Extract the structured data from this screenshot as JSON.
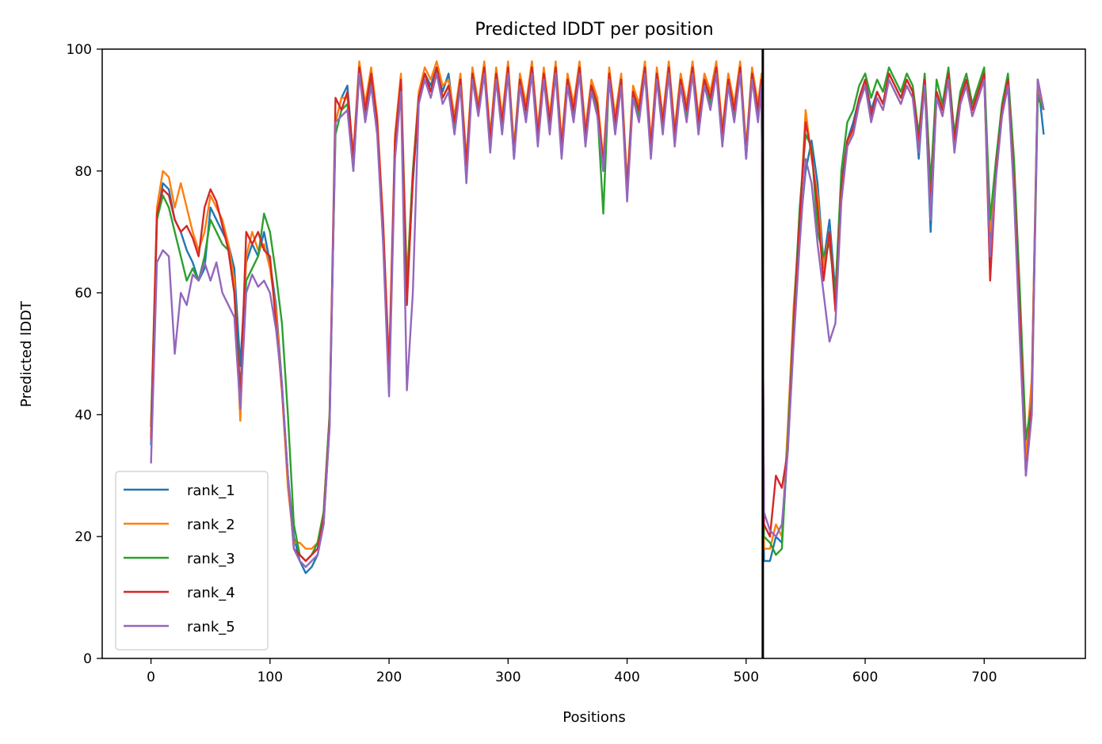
{
  "chart_data": {
    "type": "line",
    "title": "Predicted lDDT per position",
    "xlabel": "Positions",
    "ylabel": "Predicted lDDT",
    "xlim": [
      -41,
      785
    ],
    "ylim": [
      0,
      100
    ],
    "xticks": [
      0,
      100,
      200,
      300,
      400,
      500,
      600,
      700
    ],
    "yticks": [
      0,
      20,
      40,
      60,
      80,
      100
    ],
    "grid": false,
    "legend_position": "lower-left",
    "vline_x": 514,
    "colors": {
      "rank_1": "#1f77b4",
      "rank_2": "#ff7f0e",
      "rank_3": "#2ca02c",
      "rank_4": "#d62728",
      "rank_5": "#9467bd",
      "vline": "#000000"
    },
    "x": [
      0,
      5,
      10,
      15,
      20,
      25,
      30,
      35,
      40,
      45,
      50,
      55,
      60,
      65,
      70,
      75,
      80,
      85,
      90,
      95,
      100,
      105,
      110,
      115,
      120,
      125,
      130,
      135,
      140,
      145,
      150,
      155,
      160,
      165,
      170,
      175,
      180,
      185,
      190,
      195,
      200,
      205,
      210,
      215,
      220,
      225,
      230,
      235,
      240,
      245,
      250,
      255,
      260,
      265,
      270,
      275,
      280,
      285,
      290,
      295,
      300,
      305,
      310,
      315,
      320,
      325,
      330,
      335,
      340,
      345,
      350,
      355,
      360,
      365,
      370,
      375,
      380,
      385,
      390,
      395,
      400,
      405,
      410,
      415,
      420,
      425,
      430,
      435,
      440,
      445,
      450,
      455,
      460,
      465,
      470,
      475,
      480,
      485,
      490,
      495,
      500,
      505,
      510,
      513,
      515,
      520,
      525,
      530,
      535,
      540,
      545,
      550,
      555,
      560,
      565,
      570,
      575,
      580,
      585,
      590,
      595,
      600,
      605,
      610,
      615,
      620,
      625,
      630,
      635,
      640,
      645,
      650,
      655,
      660,
      665,
      670,
      675,
      680,
      685,
      690,
      695,
      700,
      705,
      710,
      715,
      720,
      725,
      730,
      735,
      740,
      745,
      750
    ],
    "series": [
      {
        "name": "rank_1",
        "values": [
          35,
          72,
          78,
          77,
          72,
          70,
          67,
          65,
          62,
          64,
          74,
          72,
          70,
          68,
          64,
          48,
          65,
          68,
          66,
          70,
          65,
          58,
          45,
          30,
          20,
          16,
          14,
          15,
          17,
          22,
          38,
          88,
          92,
          94,
          82,
          97,
          90,
          96,
          88,
          70,
          45,
          85,
          95,
          60,
          78,
          92,
          96,
          94,
          97,
          93,
          96,
          88,
          95,
          80,
          96,
          90,
          97,
          85,
          96,
          88,
          97,
          82,
          95,
          90,
          98,
          86,
          96,
          88,
          97,
          84,
          95,
          90,
          97,
          86,
          94,
          91,
          80,
          96,
          88,
          95,
          76,
          93,
          90,
          97,
          84,
          96,
          88,
          97,
          86,
          95,
          90,
          97,
          88,
          95,
          92,
          97,
          86,
          95,
          90,
          97,
          82,
          96,
          90,
          95,
          16,
          16,
          20,
          19,
          35,
          55,
          70,
          80,
          85,
          78,
          65,
          72,
          60,
          78,
          85,
          88,
          92,
          95,
          90,
          93,
          91,
          96,
          94,
          92,
          95,
          93,
          82,
          95,
          70,
          93,
          90,
          96,
          85,
          92,
          95,
          90,
          93,
          96,
          68,
          80,
          90,
          95,
          78,
          55,
          32,
          45,
          95,
          86
        ]
      },
      {
        "name": "rank_2",
        "values": [
          38,
          74,
          80,
          79,
          74,
          78,
          74,
          70,
          67,
          70,
          76,
          74,
          72,
          68,
          62,
          39,
          66,
          70,
          67,
          68,
          64,
          57,
          44,
          28,
          19,
          19,
          18,
          18,
          19,
          24,
          40,
          88,
          92,
          92,
          83,
          98,
          91,
          97,
          89,
          72,
          48,
          86,
          96,
          62,
          80,
          93,
          97,
          95,
          98,
          94,
          95,
          89,
          96,
          82,
          97,
          91,
          98,
          86,
          97,
          89,
          98,
          84,
          96,
          91,
          98,
          87,
          97,
          89,
          98,
          85,
          96,
          91,
          98,
          87,
          95,
          92,
          82,
          97,
          89,
          96,
          78,
          94,
          91,
          98,
          85,
          97,
          89,
          98,
          87,
          96,
          91,
          98,
          89,
          96,
          93,
          98,
          87,
          96,
          91,
          98,
          84,
          97,
          91,
          96,
          18,
          18,
          22,
          20,
          38,
          58,
          72,
          90,
          82,
          76,
          64,
          70,
          58,
          76,
          84,
          87,
          91,
          94,
          89,
          92,
          90,
          95,
          93,
          91,
          94,
          92,
          84,
          94,
          75,
          92,
          89,
          95,
          84,
          91,
          94,
          89,
          92,
          95,
          70,
          82,
          89,
          94,
          80,
          58,
          33,
          46,
          94,
          90
        ]
      },
      {
        "name": "rank_3",
        "values": [
          38,
          72,
          76,
          74,
          70,
          66,
          62,
          64,
          62,
          66,
          72,
          70,
          68,
          67,
          60,
          44,
          62,
          64,
          66,
          73,
          70,
          63,
          55,
          40,
          22,
          17,
          16,
          17,
          19,
          24,
          40,
          86,
          90,
          91,
          80,
          97,
          89,
          95,
          87,
          70,
          46,
          84,
          94,
          61,
          80,
          92,
          96,
          93,
          97,
          92,
          94,
          87,
          95,
          80,
          96,
          90,
          97,
          84,
          96,
          87,
          97,
          83,
          95,
          89,
          97,
          85,
          96,
          87,
          97,
          83,
          95,
          89,
          97,
          85,
          94,
          90,
          73,
          96,
          87,
          95,
          77,
          93,
          89,
          97,
          83,
          96,
          87,
          97,
          85,
          95,
          89,
          97,
          87,
          95,
          91,
          97,
          85,
          95,
          89,
          97,
          83,
          96,
          89,
          95,
          20,
          19,
          17,
          18,
          36,
          56,
          74,
          86,
          84,
          70,
          66,
          68,
          60,
          80,
          88,
          90,
          94,
          96,
          92,
          95,
          93,
          97,
          95,
          93,
          96,
          94,
          86,
          96,
          78,
          95,
          91,
          97,
          86,
          93,
          96,
          91,
          94,
          97,
          72,
          82,
          91,
          96,
          82,
          60,
          36,
          42,
          92,
          90
        ]
      },
      {
        "name": "rank_4",
        "values": [
          36,
          73,
          77,
          76,
          72,
          70,
          71,
          69,
          66,
          74,
          77,
          75,
          71,
          67,
          60,
          42,
          70,
          68,
          70,
          67,
          66,
          55,
          44,
          30,
          18,
          17,
          16,
          17,
          18,
          23,
          39,
          92,
          90,
          93,
          82,
          97,
          90,
          96,
          88,
          71,
          47,
          85,
          95,
          58,
          79,
          92,
          96,
          93,
          97,
          92,
          94,
          88,
          95,
          81,
          96,
          90,
          97,
          85,
          96,
          88,
          97,
          83,
          95,
          90,
          97,
          86,
          96,
          88,
          97,
          84,
          95,
          90,
          97,
          86,
          94,
          91,
          81,
          96,
          88,
          95,
          77,
          93,
          90,
          97,
          84,
          96,
          88,
          97,
          86,
          95,
          90,
          97,
          88,
          95,
          92,
          97,
          86,
          95,
          90,
          97,
          83,
          96,
          90,
          95,
          22,
          20,
          30,
          28,
          34,
          55,
          72,
          88,
          83,
          74,
          62,
          70,
          57,
          77,
          85,
          87,
          92,
          95,
          89,
          93,
          91,
          96,
          94,
          92,
          95,
          93,
          85,
          95,
          74,
          93,
          90,
          96,
          85,
          92,
          95,
          90,
          93,
          96,
          62,
          80,
          90,
          95,
          78,
          56,
          30,
          42,
          95,
          90
        ]
      },
      {
        "name": "rank_5",
        "values": [
          32,
          65,
          67,
          66,
          50,
          60,
          58,
          63,
          62,
          65,
          62,
          65,
          60,
          58,
          56,
          41,
          60,
          63,
          61,
          62,
          60,
          54,
          45,
          30,
          18,
          16,
          15,
          16,
          17,
          22,
          38,
          88,
          89,
          90,
          80,
          96,
          88,
          94,
          86,
          68,
          43,
          82,
          93,
          44,
          60,
          91,
          95,
          92,
          96,
          91,
          93,
          86,
          94,
          78,
          95,
          89,
          96,
          83,
          95,
          86,
          96,
          82,
          94,
          88,
          96,
          84,
          95,
          86,
          96,
          82,
          94,
          88,
          96,
          84,
          93,
          89,
          80,
          95,
          86,
          94,
          75,
          92,
          88,
          96,
          82,
          95,
          86,
          96,
          84,
          94,
          88,
          96,
          86,
          94,
          90,
          96,
          84,
          94,
          88,
          96,
          82,
          95,
          88,
          94,
          24,
          21,
          20,
          22,
          34,
          52,
          68,
          82,
          78,
          68,
          60,
          52,
          55,
          75,
          84,
          86,
          91,
          94,
          88,
          92,
          90,
          95,
          93,
          91,
          94,
          92,
          83,
          94,
          72,
          92,
          89,
          95,
          83,
          91,
          94,
          89,
          92,
          95,
          66,
          79,
          89,
          94,
          76,
          52,
          30,
          40,
          95,
          90
        ]
      }
    ]
  }
}
